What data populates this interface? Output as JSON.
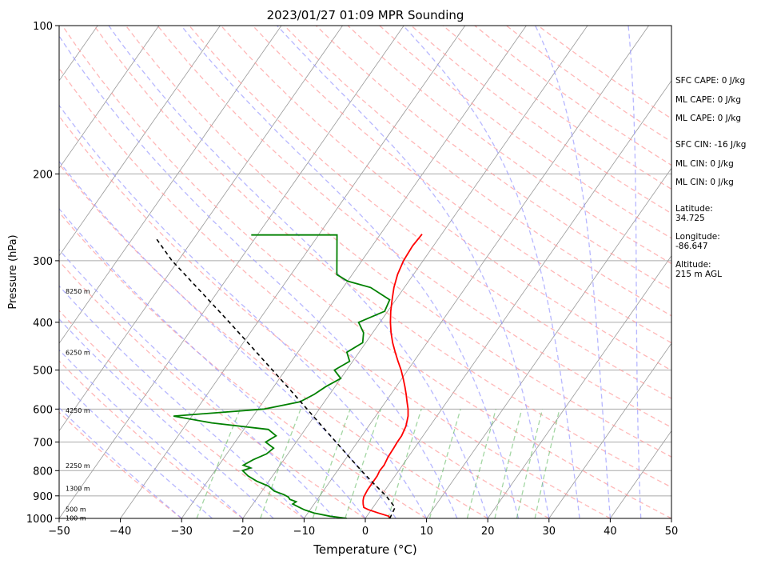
{
  "chart_data": {
    "type": "line",
    "title": "2023/01/27 01:09 MPR Sounding",
    "xlabel": "Temperature (°C)",
    "ylabel": "Pressure (hPa)",
    "xlim": [
      -50,
      50
    ],
    "ylim": [
      1000,
      100
    ],
    "y_scale": "log",
    "x_ticks": [
      "−50",
      "−40",
      "−30",
      "−20",
      "−10",
      "0",
      "10",
      "20",
      "30",
      "40",
      "50"
    ],
    "y_ticks": [
      "100",
      "200",
      "300",
      "400",
      "500",
      "600",
      "700",
      "800",
      "900",
      "1000"
    ],
    "grid": true,
    "series": [
      {
        "role": "temperature",
        "color": "#ff0000",
        "pressure": [
          1000,
          990,
          975,
          960,
          950,
          935,
          920,
          905,
          890,
          875,
          860,
          850,
          820,
          800,
          780,
          750,
          720,
          700,
          680,
          650,
          620,
          600,
          580,
          560,
          540,
          520,
          500,
          480,
          460,
          440,
          420,
          400,
          380,
          360,
          340,
          320,
          300,
          280,
          265
        ],
        "temperature": [
          4.0,
          3.6,
          1.5,
          -0.5,
          -1.5,
          -2.0,
          -2.4,
          -2.7,
          -2.8,
          -2.9,
          -2.9,
          -2.9,
          -2.9,
          -3.1,
          -3.0,
          -3.3,
          -3.4,
          -3.5,
          -3.5,
          -3.9,
          -4.7,
          -5.5,
          -6.5,
          -7.5,
          -8.6,
          -9.8,
          -11.1,
          -12.6,
          -14.1,
          -15.6,
          -17.0,
          -18.3,
          -19.5,
          -20.6,
          -21.7,
          -22.6,
          -23.2,
          -23.4,
          -23.2
        ]
      },
      {
        "role": "dewpoint",
        "color": "#008000",
        "pressure": [
          1000,
          990,
          975,
          960,
          950,
          935,
          925,
          915,
          905,
          895,
          880,
          860,
          840,
          820,
          800,
          790,
          780,
          760,
          740,
          720,
          700,
          680,
          660,
          640,
          620,
          600,
          580,
          560,
          540,
          520,
          500,
          480,
          460,
          440,
          420,
          400,
          380,
          360,
          340,
          330,
          320,
          266,
          266
        ],
        "temperature": [
          -3.0,
          -6.0,
          -9.0,
          -11.0,
          -12.0,
          -13.5,
          -13.2,
          -14.5,
          -15.0,
          -16.0,
          -18.0,
          -19.5,
          -22.0,
          -24.0,
          -25.5,
          -24.5,
          -26.0,
          -25.0,
          -23.5,
          -23.0,
          -25.0,
          -24.0,
          -26.0,
          -36.0,
          -43.0,
          -29.0,
          -24.0,
          -22.5,
          -21.5,
          -20.0,
          -22.0,
          -20.5,
          -22.0,
          -20.5,
          -21.5,
          -23.5,
          -20.5,
          -21.0,
          -25.5,
          -30.0,
          -32.5,
          -37.0,
          -51.0
        ]
      },
      {
        "role": "parcel",
        "color": "#000000",
        "style": "dashed",
        "pressure": [
          1000,
          950,
          900,
          850,
          800,
          750,
          700,
          650,
          600,
          550,
          500,
          450,
          400,
          350,
          300,
          270
        ],
        "temperature": [
          4.0,
          3.6,
          0.8,
          -2.6,
          -6.1,
          -9.7,
          -13.5,
          -17.6,
          -22.0,
          -26.8,
          -32.1,
          -38.0,
          -44.6,
          -52.2,
          -61.0,
          -66.2
        ]
      }
    ],
    "background_lines": {
      "dry_adiabats": {
        "color": "#ff9999",
        "style": "dashed"
      },
      "moist_adiabats": {
        "color": "#9999ff",
        "style": "dashed"
      },
      "mixing_ratio": {
        "color": "#66bb66",
        "style": "dashed"
      },
      "isotherms": {
        "color": "#999999",
        "style": "solid"
      }
    },
    "height_labels": [
      {
        "pressure": 998,
        "label": "100 m"
      },
      {
        "pressure": 958,
        "label": "500 m"
      },
      {
        "pressure": 870,
        "label": "1300 m"
      },
      {
        "pressure": 782,
        "label": "2250 m"
      },
      {
        "pressure": 604,
        "label": "4250 m"
      },
      {
        "pressure": 460,
        "label": "6250 m"
      },
      {
        "pressure": 346,
        "label": "8250 m"
      }
    ]
  },
  "side_panel": [
    {
      "text": "SFC CAPE: 0 J/kg"
    },
    {
      "text": "ML CAPE: 0 J/kg"
    },
    {
      "text": "ML CAPE: 0 J/kg"
    },
    {
      "text": "SFC CIN: -16 J/kg"
    },
    {
      "text": "ML CIN: 0 J/kg"
    },
    {
      "text": "ML CIN: 0 J/kg"
    },
    {
      "text": "Latitude:"
    },
    {
      "text": "34.725"
    },
    {
      "text": "Longitude:"
    },
    {
      "text": "-86.647"
    },
    {
      "text": "Altitude:"
    },
    {
      "text": "215 m AGL"
    }
  ]
}
